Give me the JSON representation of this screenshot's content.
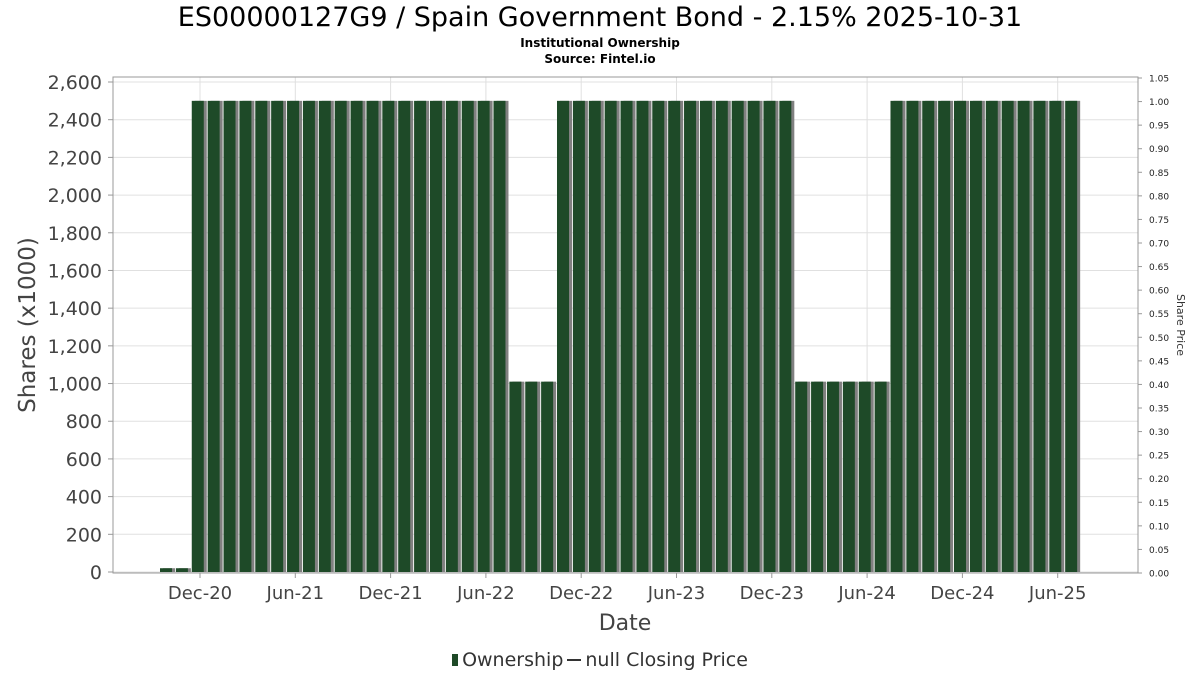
{
  "title": "ES00000127G9 / Spain Government Bond - 2.15% 2025-10-31",
  "subtitle1": "Institutional Ownership",
  "subtitle2": "Source: Fintel.io",
  "legend": {
    "ownership": "Ownership",
    "price": "null Closing Price"
  },
  "colors": {
    "bar": "#1e4a28",
    "bar_shadow": "#808080",
    "grid": "#e0e0e0"
  },
  "chart_data": {
    "type": "bar",
    "xlabel": "Date",
    "ylabel": "Shares (x1000)",
    "y2label": "Share Price",
    "ylim": [
      0,
      2600
    ],
    "y2lim": [
      0,
      1.05
    ],
    "yticks": [
      "0",
      "200",
      "400",
      "600",
      "800",
      "1,000",
      "1,200",
      "1,400",
      "1,600",
      "1,800",
      "2,000",
      "2,200",
      "2,400",
      "2,600"
    ],
    "y2ticks": [
      "0.00",
      "0.05",
      "0.10",
      "0.15",
      "0.20",
      "0.25",
      "0.30",
      "0.35",
      "0.40",
      "0.45",
      "0.50",
      "0.55",
      "0.60",
      "0.65",
      "0.70",
      "0.75",
      "0.80",
      "0.85",
      "0.90",
      "0.95",
      "1.00",
      "1.05"
    ],
    "xticks": [
      "Dec-20",
      "Jun-21",
      "Dec-21",
      "Jun-22",
      "Dec-22",
      "Jun-23",
      "Dec-23",
      "Jun-24",
      "Dec-24",
      "Jun-25"
    ],
    "grid": true,
    "legend_position": "bottom",
    "series": [
      {
        "name": "Ownership",
        "values": [
          20,
          20,
          2500,
          2500,
          2500,
          2500,
          2500,
          2500,
          2500,
          2500,
          2500,
          2500,
          2500,
          2500,
          2500,
          2500,
          2500,
          2500,
          2500,
          2500,
          2500,
          2500,
          1010,
          1010,
          1010,
          2500,
          2500,
          2500,
          2500,
          2500,
          2500,
          2500,
          2500,
          2500,
          2500,
          2500,
          2500,
          2500,
          2500,
          2500,
          1010,
          1010,
          1010,
          1010,
          1010,
          1010,
          2500,
          2500,
          2500,
          2500,
          2500,
          2500,
          2500,
          2500,
          2500,
          2500,
          2500,
          2500
        ]
      }
    ]
  }
}
